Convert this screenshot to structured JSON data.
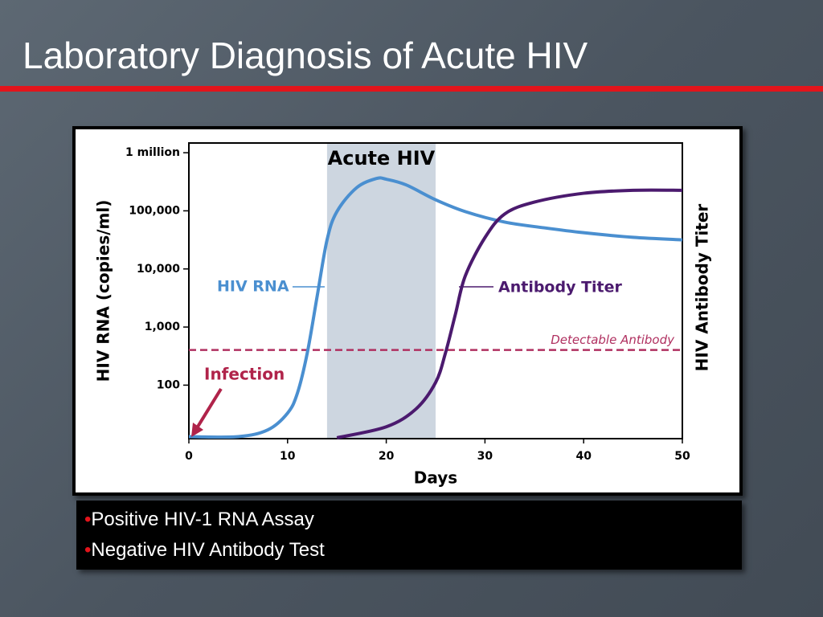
{
  "slide": {
    "title": "Laboratory Diagnosis of Acute HIV",
    "bullets": [
      "Positive HIV-1 RNA Assay",
      "Negative HIV Antibody Test"
    ]
  },
  "chart_data": {
    "type": "line",
    "x_label": "Days",
    "y_label": "HIV RNA (copies/ml)",
    "y2_label": "HIV Antibody Titer",
    "xlim": [
      0,
      50
    ],
    "xticks": [
      0,
      10,
      20,
      30,
      40,
      50
    ],
    "ylim": [
      12,
      1470000
    ],
    "ylog": true,
    "yticks": [
      100,
      {
        "value": 1000,
        "label": "1,000"
      },
      {
        "value": 10000,
        "label": "10,000"
      },
      {
        "value": 100000,
        "label": "100,000"
      },
      {
        "value": 1000000,
        "label": "1 million"
      }
    ],
    "y2lim": [
      0,
      100
    ],
    "shaded_region": {
      "label": "Acute HIV",
      "x": [
        14,
        25
      ],
      "color": "#cdd6e0"
    },
    "threshold": {
      "label": "Detectable  Antibody",
      "value": 30,
      "axis": "y2",
      "color": "#b03060"
    },
    "annotation": {
      "label": "Infection",
      "x": 0,
      "color": "#b0234a"
    },
    "series": [
      {
        "name": "HIV RNA",
        "color": "#4a8fd0",
        "x": [
          0,
          5,
          8,
          10,
          11,
          12,
          13,
          14,
          15,
          17,
          19,
          20,
          22,
          25,
          28,
          32,
          36,
          40,
          45,
          50
        ],
        "values": [
          13,
          13,
          17,
          33,
          73,
          360,
          3400,
          31600,
          97000,
          250000,
          360000,
          350000,
          280000,
          155000,
          97000,
          64000,
          51000,
          42000,
          35000,
          31600
        ]
      },
      {
        "name": "Antibody Titer",
        "color": "#4b1a6e",
        "axis": "y2",
        "x": [
          15,
          20,
          23,
          25,
          26,
          27,
          28,
          30,
          32,
          35,
          40,
          45,
          50
        ],
        "values": [
          0.3,
          4,
          10,
          19,
          29,
          42,
          55,
          68,
          76,
          80,
          83,
          84,
          84
        ]
      }
    ]
  }
}
